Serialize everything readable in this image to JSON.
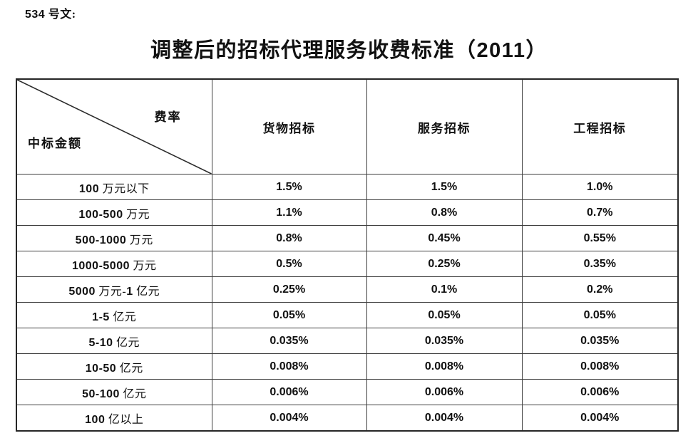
{
  "page": {
    "doc_number": "534 号文:",
    "title": "调整后的招标代理服务收费标准（2011）"
  },
  "table": {
    "corner": {
      "rate_label": "费率",
      "amount_label": "中标金额"
    },
    "columns": [
      "货物招标",
      "服务招标",
      "工程招标"
    ],
    "rows": [
      {
        "amount": "100 万元以下",
        "goods": "1.5%",
        "service": "1.5%",
        "engineering": "1.0%"
      },
      {
        "amount": "100-500 万元",
        "goods": "1.1%",
        "service": "0.8%",
        "engineering": "0.7%"
      },
      {
        "amount": "500-1000 万元",
        "goods": "0.8%",
        "service": "0.45%",
        "engineering": "0.55%"
      },
      {
        "amount": "1000-5000 万元",
        "goods": "0.5%",
        "service": "0.25%",
        "engineering": "0.35%"
      },
      {
        "amount": "5000 万元-1 亿元",
        "goods": "0.25%",
        "service": "0.1%",
        "engineering": "0.2%"
      },
      {
        "amount": "1-5 亿元",
        "goods": "0.05%",
        "service": "0.05%",
        "engineering": "0.05%"
      },
      {
        "amount": "5-10 亿元",
        "goods": "0.035%",
        "service": "0.035%",
        "engineering": "0.035%"
      },
      {
        "amount": "10-50 亿元",
        "goods": "0.008%",
        "service": "0.008%",
        "engineering": "0.008%"
      },
      {
        "amount": "50-100 亿元",
        "goods": "0.006%",
        "service": "0.006%",
        "engineering": "0.006%"
      },
      {
        "amount": "100 亿以上",
        "goods": "0.004%",
        "service": "0.004%",
        "engineering": "0.004%"
      }
    ]
  },
  "colors": {
    "text": "#111111",
    "border_outer": "#262626",
    "border_inner": "#3d3d3d",
    "background": "#ffffff"
  }
}
